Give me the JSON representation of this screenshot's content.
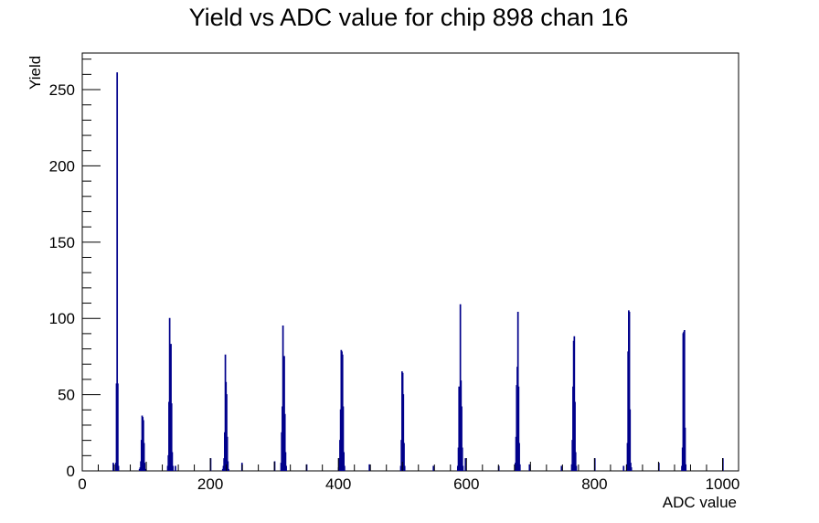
{
  "chart_data": {
    "type": "histogram",
    "title": "Yield vs ADC value for chip 898 chan 16",
    "xlabel": "ADC value",
    "ylabel": "Yield",
    "xlim": [
      0,
      1025
    ],
    "ylim": [
      0,
      274
    ],
    "x_ticks": [
      0,
      200,
      400,
      600,
      800,
      1000
    ],
    "y_ticks": [
      0,
      50,
      100,
      150,
      200,
      250
    ],
    "grid": false,
    "legend": "none",
    "line_color": "#00008b",
    "bin_width": 1,
    "bins": [
      {
        "x": 48,
        "y": 5
      },
      {
        "x": 52,
        "y": 5
      },
      {
        "x": 53,
        "y": 57
      },
      {
        "x": 54,
        "y": 261
      },
      {
        "x": 55,
        "y": 57
      },
      {
        "x": 56,
        "y": 3
      },
      {
        "x": 89,
        "y": 1
      },
      {
        "x": 90,
        "y": 2
      },
      {
        "x": 91,
        "y": 6
      },
      {
        "x": 92,
        "y": 20
      },
      {
        "x": 93,
        "y": 36
      },
      {
        "x": 94,
        "y": 35
      },
      {
        "x": 95,
        "y": 33
      },
      {
        "x": 96,
        "y": 18
      },
      {
        "x": 97,
        "y": 5
      },
      {
        "x": 98,
        "y": 1
      },
      {
        "x": 133,
        "y": 3
      },
      {
        "x": 134,
        "y": 10
      },
      {
        "x": 135,
        "y": 45
      },
      {
        "x": 136,
        "y": 100
      },
      {
        "x": 137,
        "y": 82
      },
      {
        "x": 138,
        "y": 83
      },
      {
        "x": 139,
        "y": 44
      },
      {
        "x": 140,
        "y": 12
      },
      {
        "x": 141,
        "y": 3
      },
      {
        "x": 145,
        "y": 3
      },
      {
        "x": 200,
        "y": 8
      },
      {
        "x": 219,
        "y": 1
      },
      {
        "x": 220,
        "y": 3
      },
      {
        "x": 221,
        "y": 8
      },
      {
        "x": 222,
        "y": 25
      },
      {
        "x": 223,
        "y": 76
      },
      {
        "x": 224,
        "y": 58
      },
      {
        "x": 225,
        "y": 50
      },
      {
        "x": 226,
        "y": 22
      },
      {
        "x": 227,
        "y": 6
      },
      {
        "x": 228,
        "y": 1
      },
      {
        "x": 249,
        "y": 5
      },
      {
        "x": 300,
        "y": 6
      },
      {
        "x": 310,
        "y": 5
      },
      {
        "x": 311,
        "y": 25
      },
      {
        "x": 312,
        "y": 42
      },
      {
        "x": 313,
        "y": 95
      },
      {
        "x": 314,
        "y": 36
      },
      {
        "x": 315,
        "y": 75
      },
      {
        "x": 316,
        "y": 37
      },
      {
        "x": 317,
        "y": 12
      },
      {
        "x": 318,
        "y": 3
      },
      {
        "x": 350,
        "y": 4
      },
      {
        "x": 400,
        "y": 2
      },
      {
        "x": 401,
        "y": 8
      },
      {
        "x": 402,
        "y": 20
      },
      {
        "x": 403,
        "y": 40
      },
      {
        "x": 404,
        "y": 79
      },
      {
        "x": 405,
        "y": 78
      },
      {
        "x": 406,
        "y": 76
      },
      {
        "x": 407,
        "y": 42
      },
      {
        "x": 408,
        "y": 12
      },
      {
        "x": 409,
        "y": 3
      },
      {
        "x": 448,
        "y": 4
      },
      {
        "x": 497,
        "y": 3
      },
      {
        "x": 498,
        "y": 20
      },
      {
        "x": 499,
        "y": 65
      },
      {
        "x": 500,
        "y": 64
      },
      {
        "x": 501,
        "y": 50
      },
      {
        "x": 502,
        "y": 18
      },
      {
        "x": 503,
        "y": 3
      },
      {
        "x": 548,
        "y": 3
      },
      {
        "x": 586,
        "y": 3
      },
      {
        "x": 587,
        "y": 15
      },
      {
        "x": 588,
        "y": 55
      },
      {
        "x": 589,
        "y": 35
      },
      {
        "x": 590,
        "y": 109
      },
      {
        "x": 591,
        "y": 59
      },
      {
        "x": 592,
        "y": 42
      },
      {
        "x": 593,
        "y": 15
      },
      {
        "x": 594,
        "y": 3
      },
      {
        "x": 598,
        "y": 8
      },
      {
        "x": 650,
        "y": 3
      },
      {
        "x": 676,
        "y": 5
      },
      {
        "x": 677,
        "y": 22
      },
      {
        "x": 678,
        "y": 56
      },
      {
        "x": 679,
        "y": 68
      },
      {
        "x": 680,
        "y": 104
      },
      {
        "x": 681,
        "y": 55
      },
      {
        "x": 682,
        "y": 18
      },
      {
        "x": 683,
        "y": 4
      },
      {
        "x": 698,
        "y": 4
      },
      {
        "x": 748,
        "y": 3
      },
      {
        "x": 764,
        "y": 4
      },
      {
        "x": 765,
        "y": 20
      },
      {
        "x": 766,
        "y": 55
      },
      {
        "x": 767,
        "y": 85
      },
      {
        "x": 768,
        "y": 88
      },
      {
        "x": 769,
        "y": 45
      },
      {
        "x": 770,
        "y": 12
      },
      {
        "x": 771,
        "y": 3
      },
      {
        "x": 800,
        "y": 8
      },
      {
        "x": 845,
        "y": 3
      },
      {
        "x": 850,
        "y": 4
      },
      {
        "x": 851,
        "y": 18
      },
      {
        "x": 852,
        "y": 78
      },
      {
        "x": 853,
        "y": 105
      },
      {
        "x": 854,
        "y": 104
      },
      {
        "x": 855,
        "y": 40
      },
      {
        "x": 856,
        "y": 5
      },
      {
        "x": 857,
        "y": 2
      },
      {
        "x": 900,
        "y": 5
      },
      {
        "x": 936,
        "y": 3
      },
      {
        "x": 937,
        "y": 15
      },
      {
        "x": 938,
        "y": 90
      },
      {
        "x": 939,
        "y": 91
      },
      {
        "x": 940,
        "y": 92
      },
      {
        "x": 941,
        "y": 28
      },
      {
        "x": 942,
        "y": 4
      },
      {
        "x": 1000,
        "y": 8
      }
    ]
  }
}
